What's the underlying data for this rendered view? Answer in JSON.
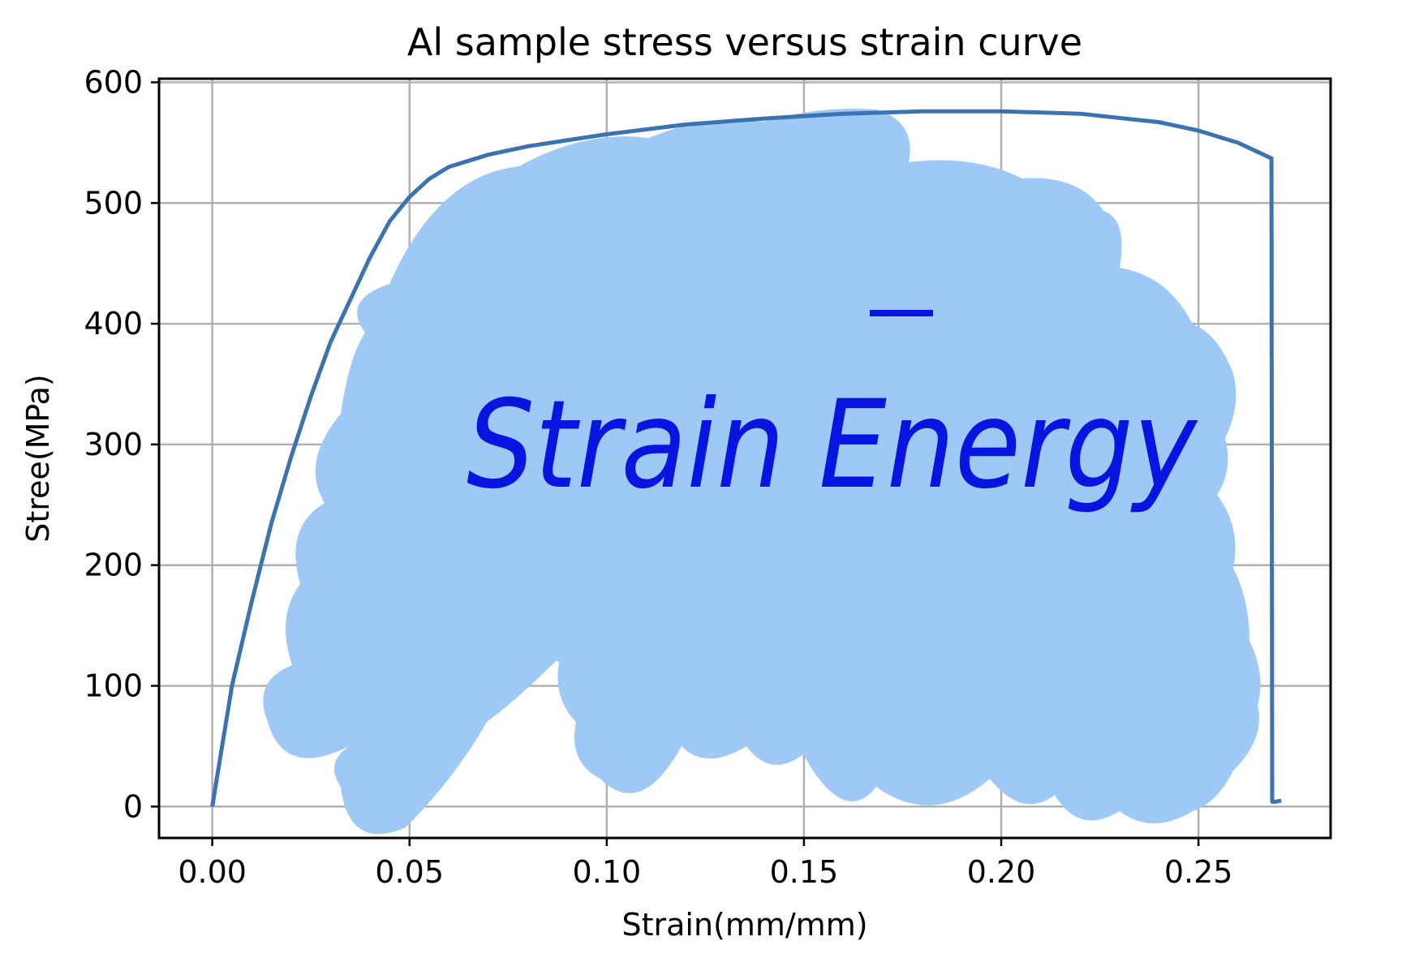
{
  "chart_data": {
    "type": "line",
    "title": "Al sample stress versus strain curve",
    "xlabel": "Strain(mm/mm)",
    "ylabel": "Stree(MPa)",
    "xlim": [
      -0.0135,
      0.2835
    ],
    "ylim": [
      -26,
      603
    ],
    "grid": true,
    "xticks": [
      0.0,
      0.05,
      0.1,
      0.15,
      0.2,
      0.25
    ],
    "xtick_labels": [
      "0.00",
      "0.05",
      "0.10",
      "0.15",
      "0.20",
      "0.25"
    ],
    "yticks": [
      0,
      100,
      200,
      300,
      400,
      500,
      600
    ],
    "ytick_labels": [
      "0",
      "100",
      "200",
      "300",
      "400",
      "500",
      "600"
    ],
    "series": [
      {
        "color": "#3b73b0",
        "x": [
          0.0,
          0.005,
          0.01,
          0.015,
          0.02,
          0.025,
          0.03,
          0.035,
          0.04,
          0.045,
          0.05,
          0.055,
          0.06,
          0.07,
          0.08,
          0.09,
          0.1,
          0.12,
          0.14,
          0.16,
          0.18,
          0.2,
          0.22,
          0.24,
          0.25,
          0.26,
          0.2685,
          0.2687,
          0.2695,
          0.271
        ],
        "y": [
          0,
          100,
          170,
          235,
          290,
          340,
          385,
          420,
          455,
          485,
          505,
          520,
          530,
          540,
          547,
          552,
          557,
          565,
          570,
          574,
          576,
          576,
          574,
          567,
          560,
          550,
          537,
          4,
          4,
          5
        ]
      }
    ],
    "annotation": {
      "text": "Strain Energy",
      "fill_color": "#9ec9f7",
      "text_color": "#0a14e0"
    }
  }
}
